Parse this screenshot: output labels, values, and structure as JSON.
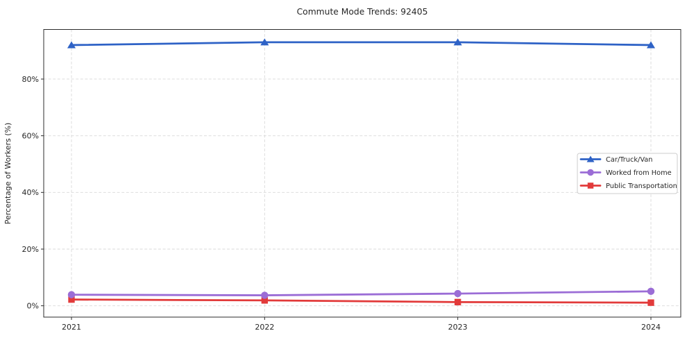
{
  "title": "Commute Mode Trends: 92405",
  "chart_data": {
    "type": "line",
    "title": "Commute Mode Trends: 92405",
    "categories": [
      "2021",
      "2022",
      "2023",
      "2024"
    ],
    "series": [
      {
        "name": "Car/Truck/Van",
        "marker": "triangle",
        "color": "#2e62c6",
        "values": [
          92,
          93,
          93,
          92
        ]
      },
      {
        "name": "Worked from Home",
        "marker": "circle",
        "color": "#9b6dd6",
        "values": [
          3.9,
          3.7,
          4.3,
          5.1
        ]
      },
      {
        "name": "Public Transportation",
        "marker": "square",
        "color": "#e23a3a",
        "values": [
          2.2,
          1.9,
          1.3,
          1.1
        ]
      }
    ],
    "xlabel": "",
    "ylabel": "Percentage of Workers (%)",
    "yticks": {
      "values": [
        0,
        20,
        40,
        60,
        80
      ],
      "labels": [
        "0%",
        "20%",
        "40%",
        "60%",
        "80%"
      ]
    },
    "ylim": [
      -4,
      97.5
    ],
    "grid": true,
    "grid_style": "dashed",
    "legend_position": "center-right",
    "colors": {
      "grid": "#d9d9d9",
      "spine": "#2b2b2b",
      "text": "#262626",
      "background": "#ffffff",
      "legend_border": "#cccccc"
    }
  }
}
